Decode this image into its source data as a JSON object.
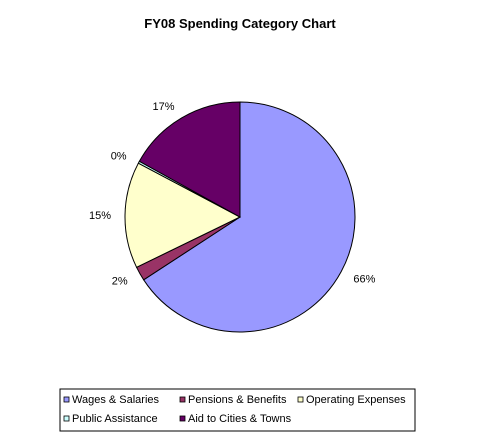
{
  "chart_data": {
    "type": "pie",
    "title": "FY08 Spending Category Chart",
    "slices": [
      {
        "label": "Wages & Salaries",
        "value": 66,
        "display": "66%",
        "color": "#9999ff"
      },
      {
        "label": "Pensions & Benefits",
        "value": 2,
        "display": "2%",
        "color": "#993366"
      },
      {
        "label": "Operating Expenses",
        "value": 15,
        "display": "15%",
        "color": "#ffffcc"
      },
      {
        "label": "Public Assistance",
        "value": 0.3,
        "display": "0%",
        "color": "#ccffff"
      },
      {
        "label": "Aid to Cities & Towns",
        "value": 17,
        "display": "17%",
        "color": "#660066"
      }
    ],
    "legend_placement": "bottom"
  }
}
